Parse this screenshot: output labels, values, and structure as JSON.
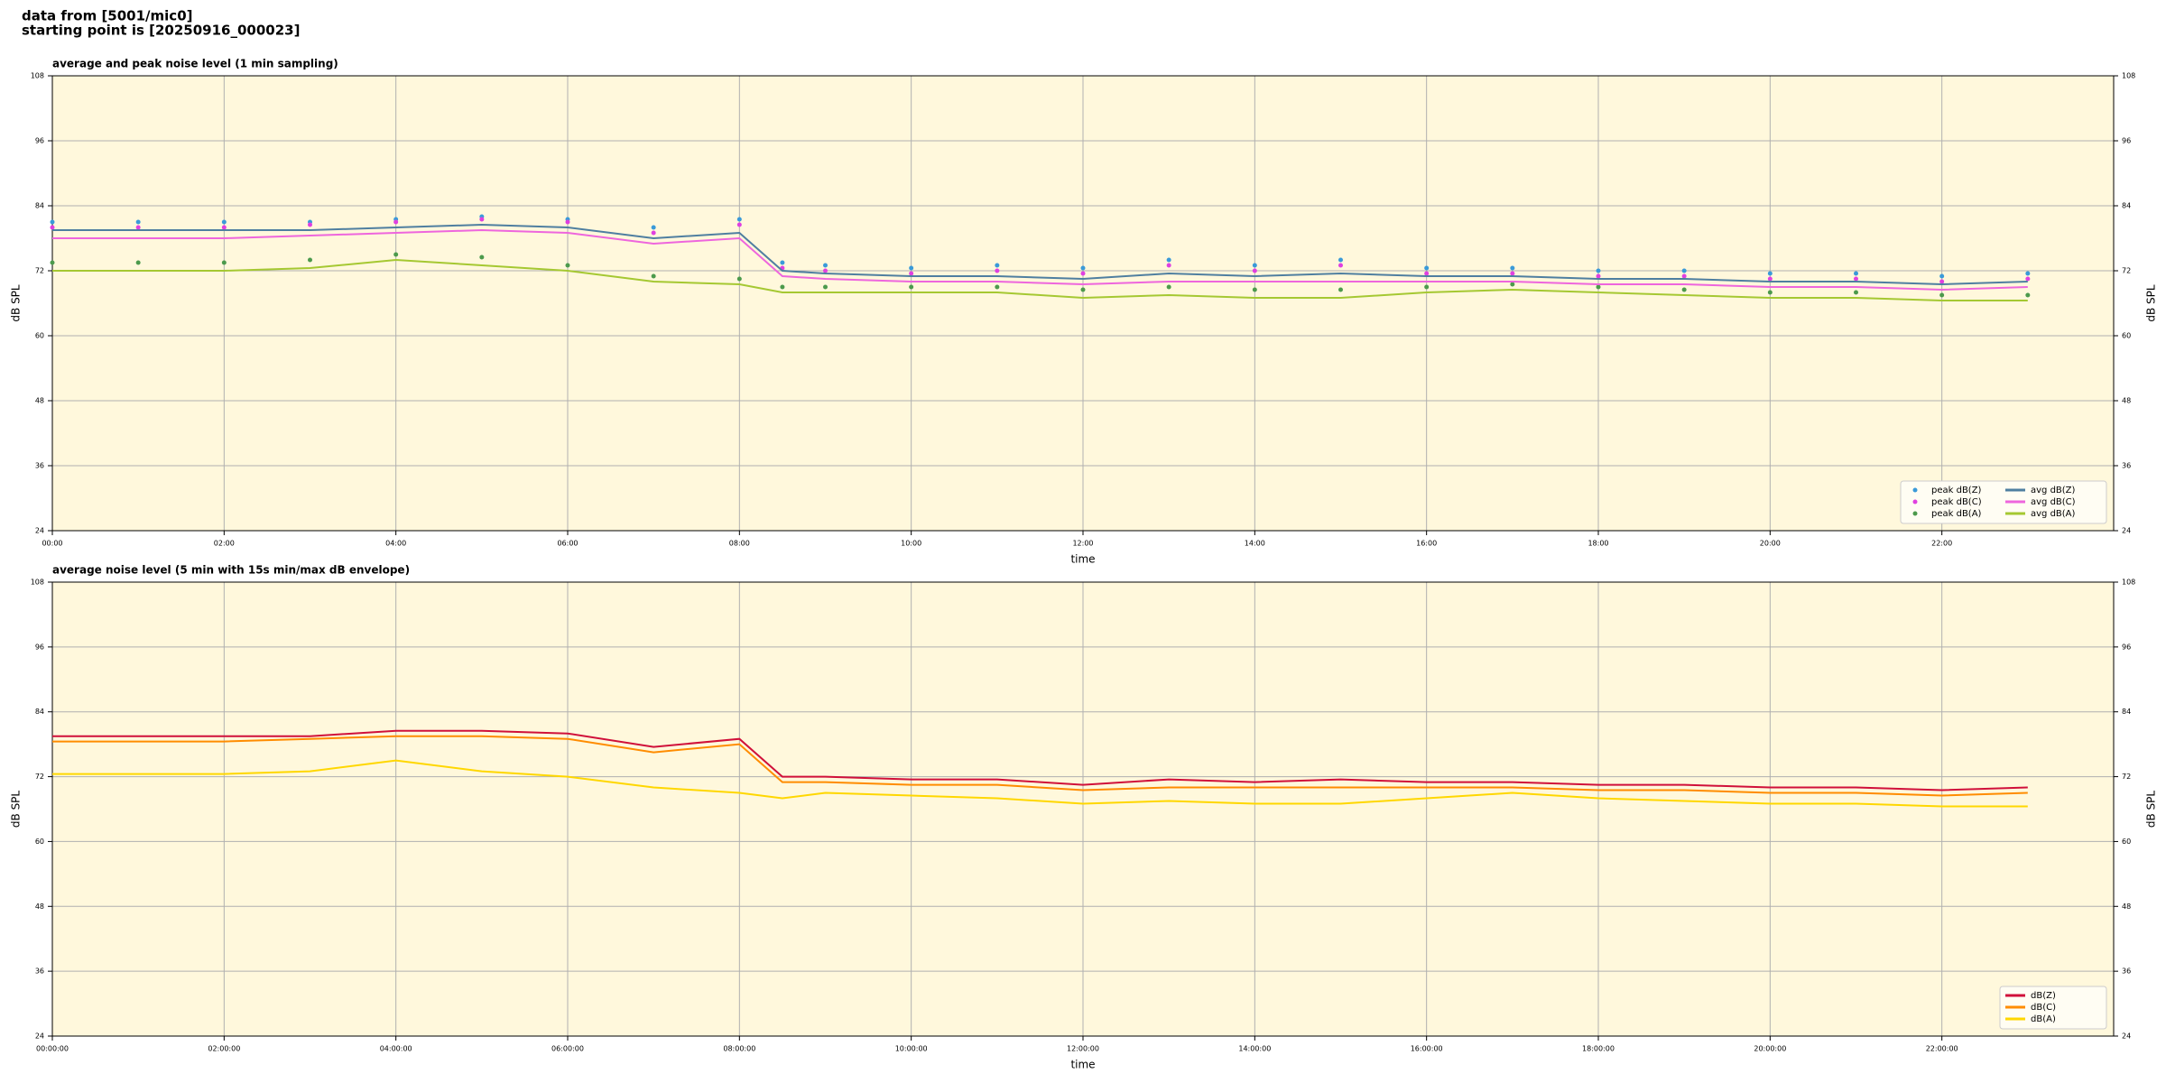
{
  "header": [
    "data from [5001/mic0]",
    "starting point is [20250916_000023]"
  ],
  "chart_data": [
    {
      "type": "line",
      "title": "average and peak noise level (1 min sampling)",
      "xlabel": "time",
      "ylabel": "dB SPL",
      "x": [
        0,
        1,
        2,
        3,
        4,
        5,
        6,
        7,
        8,
        8.5,
        9,
        10,
        11,
        12,
        13,
        14,
        15,
        16,
        17,
        18,
        19,
        20,
        21,
        22,
        23
      ],
      "xlim": [
        0,
        24
      ],
      "xticks": [
        {
          "value": 0,
          "label": "00:00"
        },
        {
          "value": 2,
          "label": "02:00"
        },
        {
          "value": 4,
          "label": "04:00"
        },
        {
          "value": 6,
          "label": "06:00"
        },
        {
          "value": 8,
          "label": "08:00"
        },
        {
          "value": 10,
          "label": "10:00"
        },
        {
          "value": 12,
          "label": "12:00"
        },
        {
          "value": 14,
          "label": "14:00"
        },
        {
          "value": 16,
          "label": "16:00"
        },
        {
          "value": 18,
          "label": "18:00"
        },
        {
          "value": 20,
          "label": "20:00"
        },
        {
          "value": 22,
          "label": "22:00"
        }
      ],
      "ylim": [
        24,
        108
      ],
      "yticks": [
        24,
        36,
        48,
        60,
        72,
        84,
        96,
        108
      ],
      "grid": true,
      "legend": "lower right",
      "legend_columns": 2,
      "series": [
        {
          "name": "peak dB(Z)",
          "kind": "scatter",
          "color": "#3a9ad9",
          "values": [
            81,
            81,
            81,
            81,
            81.5,
            82,
            81.5,
            80,
            81.5,
            73.5,
            73,
            72.5,
            73,
            72.5,
            74,
            73,
            74,
            72.5,
            72.5,
            72,
            72,
            71.5,
            71.5,
            71,
            71.5
          ]
        },
        {
          "name": "peak dB(C)",
          "kind": "scatter",
          "color": "#e040e0",
          "values": [
            80,
            80,
            80,
            80.5,
            81,
            81.5,
            81,
            79,
            80.5,
            72.5,
            72,
            71.5,
            72,
            71.5,
            73,
            72,
            73,
            71.5,
            71.5,
            71,
            71,
            70.5,
            70.5,
            70,
            70.5
          ]
        },
        {
          "name": "peak dB(A)",
          "kind": "scatter",
          "color": "#4c9a4c",
          "values": [
            73.5,
            73.5,
            73.5,
            74,
            75,
            74.5,
            73,
            71,
            70.5,
            69,
            69,
            69,
            69,
            68.5,
            69,
            68.5,
            68.5,
            69,
            69.5,
            69,
            68.5,
            68,
            68,
            67.5,
            67.5
          ]
        },
        {
          "name": "avg dB(Z)",
          "kind": "line",
          "color": "#4f7fa0",
          "values": [
            79.5,
            79.5,
            79.5,
            79.5,
            80,
            80.5,
            80,
            78,
            79,
            72,
            71.5,
            71,
            71,
            70.5,
            71.5,
            71,
            71.5,
            71,
            71,
            70.5,
            70.5,
            70,
            70,
            69.5,
            70
          ]
        },
        {
          "name": "avg dB(C)",
          "kind": "line",
          "color": "#ee66dd",
          "values": [
            78,
            78,
            78,
            78.5,
            79,
            79.5,
            79,
            77,
            78,
            71,
            70.5,
            70,
            70,
            69.5,
            70,
            70,
            70,
            70,
            70,
            69.5,
            69.5,
            69,
            69,
            68.5,
            69
          ]
        },
        {
          "name": "avg dB(A)",
          "kind": "line",
          "color": "#a5c832",
          "values": [
            72,
            72,
            72,
            72.5,
            74,
            73,
            72,
            70,
            69.5,
            68,
            68,
            68,
            68,
            67,
            67.5,
            67,
            67,
            68,
            68.5,
            68,
            67.5,
            67,
            67,
            66.5,
            66.5
          ]
        }
      ]
    },
    {
      "type": "line",
      "title": "average noise level (5 min with 15s min/max dB envelope)",
      "xlabel": "time",
      "ylabel": "dB SPL",
      "x": [
        0,
        1,
        2,
        3,
        4,
        5,
        6,
        7,
        8,
        8.5,
        9,
        10,
        11,
        12,
        13,
        14,
        15,
        16,
        17,
        18,
        19,
        20,
        21,
        22,
        23
      ],
      "xlim": [
        0,
        24
      ],
      "xticks": [
        {
          "value": 0,
          "label": "00:00:00"
        },
        {
          "value": 2,
          "label": "02:00:00"
        },
        {
          "value": 4,
          "label": "04:00:00"
        },
        {
          "value": 6,
          "label": "06:00:00"
        },
        {
          "value": 8,
          "label": "08:00:00"
        },
        {
          "value": 10,
          "label": "10:00:00"
        },
        {
          "value": 12,
          "label": "12:00:00"
        },
        {
          "value": 14,
          "label": "14:00:00"
        },
        {
          "value": 16,
          "label": "16:00:00"
        },
        {
          "value": 18,
          "label": "18:00:00"
        },
        {
          "value": 20,
          "label": "20:00:00"
        },
        {
          "value": 22,
          "label": "22:00:00"
        }
      ],
      "ylim": [
        24,
        108
      ],
      "yticks": [
        24,
        36,
        48,
        60,
        72,
        84,
        96,
        108
      ],
      "grid": true,
      "legend": "lower right",
      "legend_columns": 1,
      "series": [
        {
          "name": "dB(Z)",
          "kind": "line",
          "color": "#d0103a",
          "values": [
            79.5,
            79.5,
            79.5,
            79.5,
            80.5,
            80.5,
            80,
            77.5,
            79,
            72,
            72,
            71.5,
            71.5,
            70.5,
            71.5,
            71,
            71.5,
            71,
            71,
            70.5,
            70.5,
            70,
            70,
            69.5,
            70
          ]
        },
        {
          "name": "dB(C)",
          "kind": "line",
          "color": "#ff8c00",
          "values": [
            78.5,
            78.5,
            78.5,
            79,
            79.5,
            79.5,
            79,
            76.5,
            78,
            71,
            71,
            70.5,
            70.5,
            69.5,
            70,
            70,
            70,
            70,
            70,
            69.5,
            69.5,
            69,
            69,
            68.5,
            69
          ]
        },
        {
          "name": "dB(A)",
          "kind": "line",
          "color": "#ffd700",
          "values": [
            72.5,
            72.5,
            72.5,
            73,
            75,
            73,
            72,
            70,
            69,
            68,
            69,
            68.5,
            68,
            67,
            67.5,
            67,
            67,
            68,
            69,
            68,
            67.5,
            67,
            67,
            66.5,
            66.5
          ]
        }
      ]
    }
  ]
}
